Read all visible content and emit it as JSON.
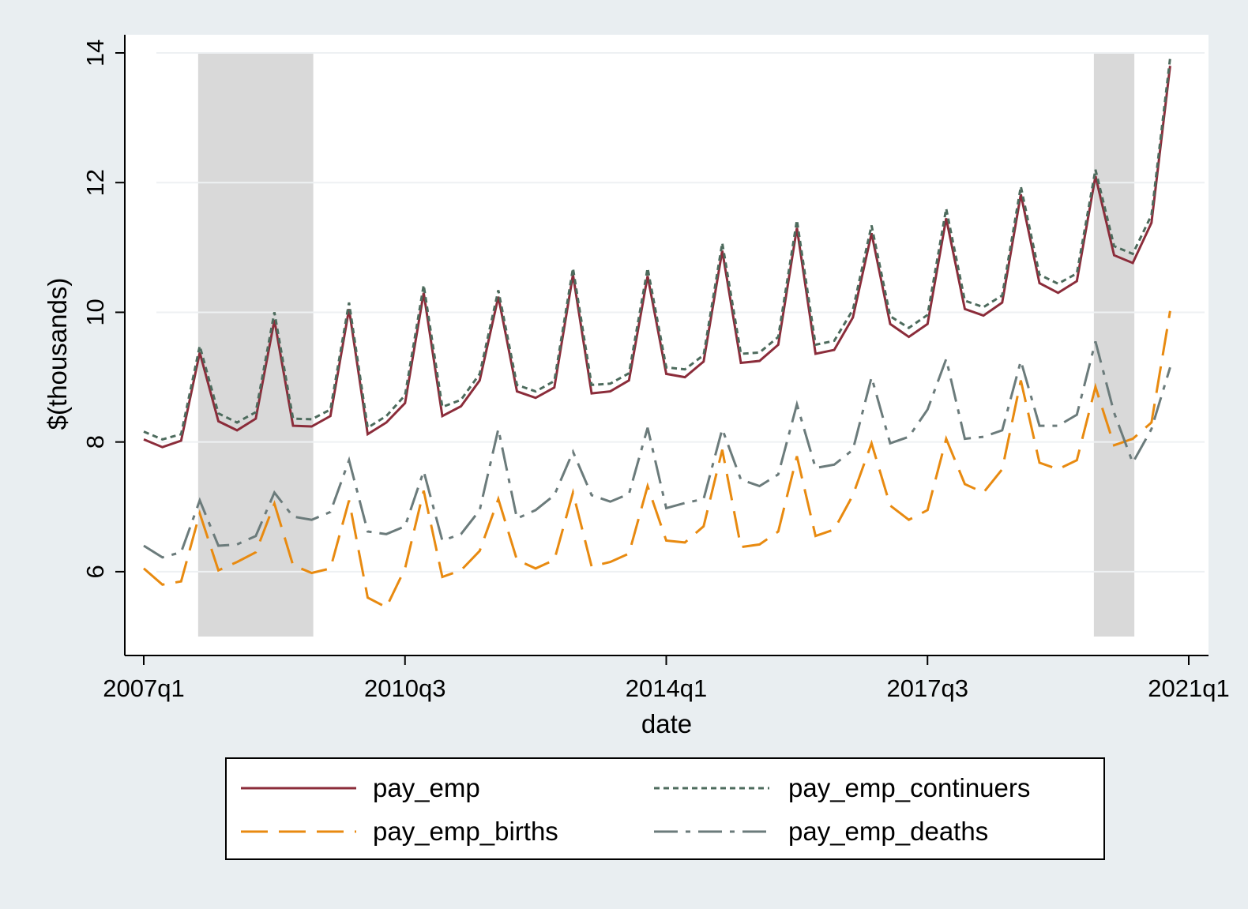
{
  "chart_data": {
    "type": "line",
    "title": "",
    "xlabel": "date",
    "ylabel": "$(thousands)",
    "ylim": [
      5,
      14
    ],
    "y_ticks": [
      6,
      8,
      10,
      12,
      14
    ],
    "x_ticks": [
      "2007q1",
      "2010q3",
      "2014q1",
      "2017q3",
      "2021q1"
    ],
    "x_start": "2007q1",
    "x_end": "2021q1",
    "grid": "horizontal",
    "legend_position": "bottom",
    "shaded_periods": [
      {
        "start": "2007q4",
        "end": "2009q2"
      },
      {
        "start": "2019q4",
        "end": "2020q2"
      }
    ],
    "x": [
      "2007q1",
      "2007q2",
      "2007q3",
      "2007q4",
      "2008q1",
      "2008q2",
      "2008q3",
      "2008q4",
      "2009q1",
      "2009q2",
      "2009q3",
      "2009q4",
      "2010q1",
      "2010q2",
      "2010q3",
      "2010q4",
      "2011q1",
      "2011q2",
      "2011q3",
      "2011q4",
      "2012q1",
      "2012q2",
      "2012q3",
      "2012q4",
      "2013q1",
      "2013q2",
      "2013q3",
      "2013q4",
      "2014q1",
      "2014q2",
      "2014q3",
      "2014q4",
      "2015q1",
      "2015q2",
      "2015q3",
      "2015q4",
      "2016q1",
      "2016q2",
      "2016q3",
      "2016q4",
      "2017q1",
      "2017q2",
      "2017q3",
      "2017q4",
      "2018q1",
      "2018q2",
      "2018q3",
      "2018q4",
      "2019q1",
      "2019q2",
      "2019q3",
      "2019q4",
      "2020q1",
      "2020q2",
      "2020q3",
      "2020q4"
    ],
    "series": [
      {
        "name": "pay_emp",
        "color": "#8b2c3a",
        "dash": "solid",
        "values": [
          8.04,
          7.92,
          8.02,
          9.38,
          8.32,
          8.18,
          8.36,
          9.88,
          8.25,
          8.24,
          8.4,
          10.05,
          8.12,
          8.3,
          8.6,
          10.3,
          8.4,
          8.55,
          8.95,
          10.24,
          8.78,
          8.68,
          8.84,
          10.58,
          8.75,
          8.78,
          8.95,
          10.56,
          9.05,
          9.0,
          9.24,
          10.95,
          9.22,
          9.25,
          9.5,
          11.3,
          9.36,
          9.42,
          9.92,
          11.22,
          9.82,
          9.62,
          9.82,
          11.45,
          10.05,
          9.95,
          10.15,
          11.82,
          10.45,
          10.3,
          10.48,
          12.1,
          10.88,
          10.76,
          11.38,
          13.8
        ]
      },
      {
        "name": "pay_emp_continuers",
        "color": "#4d6b5d",
        "dash": "short",
        "values": [
          8.16,
          8.04,
          8.12,
          9.48,
          8.44,
          8.3,
          8.46,
          10.0,
          8.36,
          8.35,
          8.5,
          10.15,
          8.22,
          8.4,
          8.72,
          10.42,
          8.54,
          8.65,
          9.05,
          10.34,
          8.88,
          8.78,
          8.94,
          10.68,
          8.88,
          8.9,
          9.06,
          10.68,
          9.15,
          9.12,
          9.34,
          11.07,
          9.36,
          9.38,
          9.62,
          11.42,
          9.5,
          9.56,
          10.04,
          11.34,
          9.94,
          9.76,
          9.96,
          11.6,
          10.18,
          10.08,
          10.26,
          11.94,
          10.58,
          10.44,
          10.6,
          12.2,
          11.02,
          10.9,
          11.5,
          13.92
        ]
      },
      {
        "name": "pay_emp_births",
        "color": "#e88a10",
        "dash": "long",
        "values": [
          6.05,
          5.8,
          5.85,
          6.9,
          6.02,
          6.15,
          6.3,
          7.05,
          6.1,
          5.98,
          6.05,
          7.1,
          5.6,
          5.45,
          6.05,
          7.25,
          5.92,
          6.02,
          6.32,
          7.12,
          6.18,
          6.05,
          6.18,
          7.22,
          6.08,
          6.15,
          6.28,
          7.32,
          6.48,
          6.45,
          6.7,
          7.88,
          6.38,
          6.42,
          6.62,
          7.78,
          6.55,
          6.65,
          7.18,
          7.98,
          7.02,
          6.8,
          6.95,
          8.05,
          7.35,
          7.22,
          7.58,
          8.95,
          7.68,
          7.58,
          7.72,
          8.85,
          7.95,
          8.05,
          8.3,
          10.02
        ]
      },
      {
        "name": "pay_emp_deaths",
        "color": "#6b7b7b",
        "dash": "dashdot",
        "values": [
          6.4,
          6.22,
          6.3,
          7.1,
          6.4,
          6.42,
          6.55,
          7.22,
          6.85,
          6.8,
          6.92,
          7.72,
          6.62,
          6.58,
          6.7,
          7.55,
          6.48,
          6.58,
          6.95,
          8.2,
          6.82,
          6.95,
          7.18,
          7.85,
          7.18,
          7.08,
          7.2,
          8.22,
          6.98,
          7.06,
          7.12,
          8.2,
          7.42,
          7.32,
          7.5,
          8.58,
          7.6,
          7.65,
          7.88,
          9.0,
          7.98,
          8.08,
          8.5,
          9.28,
          8.05,
          8.08,
          8.18,
          9.25,
          8.25,
          8.25,
          8.42,
          9.55,
          8.45,
          7.68,
          8.2,
          9.15
        ]
      }
    ]
  }
}
